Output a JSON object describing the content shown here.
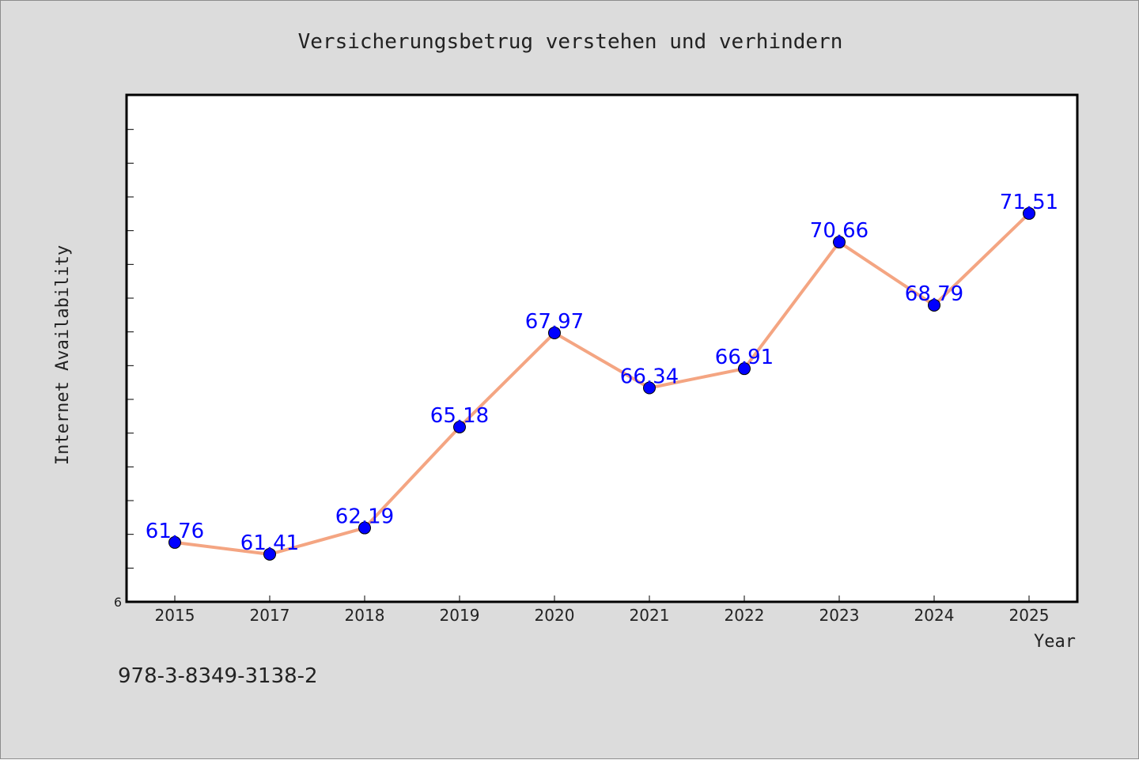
{
  "chart_data": {
    "type": "line",
    "title": "Versicherungsbetrug verstehen und verhindern",
    "xlabel": "Year",
    "ylabel": "Internet Availability",
    "categories": [
      "2015",
      "2017",
      "2018",
      "2019",
      "2020",
      "2021",
      "2022",
      "2023",
      "2024",
      "2025"
    ],
    "values": [
      61.76,
      61.41,
      62.19,
      65.18,
      67.97,
      66.34,
      66.91,
      70.66,
      68.79,
      71.51
    ],
    "data_labels": [
      "61.76",
      "61.41",
      "62.19",
      "65.18",
      "67.97",
      "66.34",
      "66.91",
      "70.66",
      "68.79",
      "71.51"
    ],
    "ylim": [
      60,
      75
    ],
    "ytick_label": "6",
    "grid": false,
    "legend": "none",
    "colors": {
      "line": "#f4a582",
      "marker": "#0000ff",
      "label": "#0000ff",
      "plot_background": "#ffffff",
      "figure_background": "#dcdcdc"
    }
  },
  "footer": {
    "isbn": "978-3-8349-3138-2"
  }
}
